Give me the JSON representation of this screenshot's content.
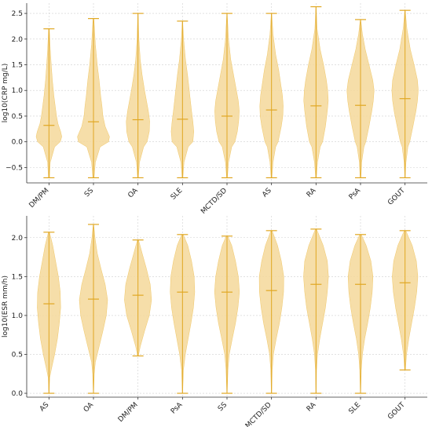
{
  "colors": {
    "violin_fill": "#f5d89a",
    "violin_edge": "#f0c766",
    "line": "#e0a722",
    "grid": "#cfcfcf",
    "axis": "#333333"
  },
  "chart_data": [
    {
      "type": "violin",
      "ylabel": "log10(CRP mg/L)",
      "ylim": [
        -0.8,
        2.7
      ],
      "yticks": [
        -0.5,
        0.0,
        0.5,
        1.0,
        1.5,
        2.0,
        2.5
      ],
      "ytick_labels": [
        "−0.5",
        "0.0",
        "0.5",
        "1.0",
        "1.5",
        "2.0",
        "2.5"
      ],
      "grid": true,
      "categories": [
        "DM/PM",
        "SS",
        "OA",
        "SLE",
        "MCTD/SD",
        "AS",
        "RA",
        "PsA",
        "GOUT"
      ],
      "min": [
        -0.7,
        -0.7,
        -0.7,
        -0.7,
        -0.7,
        -0.7,
        -0.7,
        -0.7,
        -0.7
      ],
      "max": [
        2.2,
        2.4,
        2.5,
        2.35,
        2.5,
        2.5,
        2.63,
        2.38,
        2.56
      ],
      "median": [
        0.32,
        0.39,
        0.43,
        0.44,
        0.5,
        0.62,
        0.7,
        0.71,
        0.84
      ],
      "density": [
        [
          [
            -0.7,
            0.03
          ],
          [
            -0.4,
            0.07
          ],
          [
            -0.1,
            0.3
          ],
          [
            0.0,
            0.6
          ],
          [
            0.1,
            0.68
          ],
          [
            0.2,
            0.62
          ],
          [
            0.35,
            0.48
          ],
          [
            0.5,
            0.4
          ],
          [
            0.7,
            0.33
          ],
          [
            0.9,
            0.26
          ],
          [
            1.2,
            0.18
          ],
          [
            1.5,
            0.12
          ],
          [
            1.8,
            0.07
          ],
          [
            2.2,
            0.02
          ]
        ],
        [
          [
            -0.7,
            0.03
          ],
          [
            -0.4,
            0.1
          ],
          [
            -0.1,
            0.35
          ],
          [
            0.0,
            0.8
          ],
          [
            0.1,
            0.85
          ],
          [
            0.3,
            0.62
          ],
          [
            0.5,
            0.5
          ],
          [
            0.7,
            0.45
          ],
          [
            0.9,
            0.38
          ],
          [
            1.2,
            0.3
          ],
          [
            1.5,
            0.2
          ],
          [
            1.9,
            0.1
          ],
          [
            2.4,
            0.02
          ]
        ],
        [
          [
            -0.7,
            0.02
          ],
          [
            -0.4,
            0.08
          ],
          [
            -0.1,
            0.3
          ],
          [
            0.0,
            0.48
          ],
          [
            0.2,
            0.6
          ],
          [
            0.4,
            0.62
          ],
          [
            0.6,
            0.55
          ],
          [
            0.8,
            0.45
          ],
          [
            1.0,
            0.35
          ],
          [
            1.3,
            0.22
          ],
          [
            1.6,
            0.12
          ],
          [
            2.0,
            0.05
          ],
          [
            2.5,
            0.01
          ]
        ],
        [
          [
            -0.7,
            0.02
          ],
          [
            -0.4,
            0.08
          ],
          [
            -0.1,
            0.3
          ],
          [
            0.0,
            0.55
          ],
          [
            0.2,
            0.6
          ],
          [
            0.4,
            0.55
          ],
          [
            0.6,
            0.48
          ],
          [
            0.8,
            0.42
          ],
          [
            1.0,
            0.36
          ],
          [
            1.3,
            0.27
          ],
          [
            1.6,
            0.16
          ],
          [
            2.0,
            0.06
          ],
          [
            2.35,
            0.01
          ]
        ],
        [
          [
            -0.7,
            0.02
          ],
          [
            -0.4,
            0.08
          ],
          [
            -0.1,
            0.25
          ],
          [
            0.0,
            0.42
          ],
          [
            0.2,
            0.55
          ],
          [
            0.4,
            0.62
          ],
          [
            0.6,
            0.65
          ],
          [
            0.8,
            0.6
          ],
          [
            1.0,
            0.5
          ],
          [
            1.3,
            0.35
          ],
          [
            1.6,
            0.2
          ],
          [
            2.0,
            0.08
          ],
          [
            2.5,
            0.01
          ]
        ],
        [
          [
            -0.7,
            0.02
          ],
          [
            -0.4,
            0.08
          ],
          [
            -0.1,
            0.22
          ],
          [
            0.0,
            0.35
          ],
          [
            0.3,
            0.52
          ],
          [
            0.5,
            0.6
          ],
          [
            0.7,
            0.62
          ],
          [
            0.9,
            0.58
          ],
          [
            1.1,
            0.5
          ],
          [
            1.4,
            0.38
          ],
          [
            1.7,
            0.22
          ],
          [
            2.1,
            0.08
          ],
          [
            2.5,
            0.01
          ]
        ],
        [
          [
            -0.7,
            0.02
          ],
          [
            -0.4,
            0.08
          ],
          [
            -0.1,
            0.22
          ],
          [
            0.0,
            0.35
          ],
          [
            0.3,
            0.5
          ],
          [
            0.6,
            0.6
          ],
          [
            0.8,
            0.65
          ],
          [
            1.0,
            0.62
          ],
          [
            1.2,
            0.55
          ],
          [
            1.5,
            0.4
          ],
          [
            1.8,
            0.22
          ],
          [
            2.2,
            0.06
          ],
          [
            2.63,
            0.01
          ]
        ],
        [
          [
            -0.7,
            0.02
          ],
          [
            -0.4,
            0.06
          ],
          [
            -0.1,
            0.18
          ],
          [
            0.0,
            0.28
          ],
          [
            0.3,
            0.45
          ],
          [
            0.6,
            0.6
          ],
          [
            0.8,
            0.68
          ],
          [
            1.0,
            0.72
          ],
          [
            1.2,
            0.65
          ],
          [
            1.5,
            0.45
          ],
          [
            1.8,
            0.25
          ],
          [
            2.1,
            0.1
          ],
          [
            2.38,
            0.01
          ]
        ],
        [
          [
            -0.7,
            0.01
          ],
          [
            -0.4,
            0.05
          ],
          [
            -0.1,
            0.15
          ],
          [
            0.0,
            0.25
          ],
          [
            0.3,
            0.42
          ],
          [
            0.6,
            0.58
          ],
          [
            0.8,
            0.66
          ],
          [
            1.0,
            0.7
          ],
          [
            1.2,
            0.66
          ],
          [
            1.5,
            0.48
          ],
          [
            1.8,
            0.28
          ],
          [
            2.2,
            0.1
          ],
          [
            2.56,
            0.01
          ]
        ]
      ]
    },
    {
      "type": "violin",
      "ylabel": "log10(ESR mm/h)",
      "ylim": [
        -0.05,
        2.28
      ],
      "yticks": [
        0.0,
        0.5,
        1.0,
        1.5,
        2.0
      ],
      "ytick_labels": [
        "0.0",
        "0.5",
        "1.0",
        "1.5",
        "2.0"
      ],
      "grid": true,
      "categories": [
        "AS",
        "OA",
        "DM/PM",
        "PsA",
        "SS",
        "MCTD/SD",
        "RA",
        "SLE",
        "GOUT"
      ],
      "min": [
        0.0,
        0.0,
        0.48,
        0.0,
        0.0,
        0.0,
        0.0,
        0.0,
        0.3
      ],
      "max": [
        2.07,
        2.17,
        1.97,
        2.04,
        2.02,
        2.09,
        2.11,
        2.04,
        2.09
      ],
      "median": [
        1.15,
        1.21,
        1.26,
        1.3,
        1.3,
        1.32,
        1.4,
        1.4,
        1.42
      ],
      "density": [
        [
          [
            0.0,
            0.01
          ],
          [
            0.2,
            0.04
          ],
          [
            0.3,
            0.12
          ],
          [
            0.5,
            0.3
          ],
          [
            0.7,
            0.45
          ],
          [
            0.9,
            0.55
          ],
          [
            1.1,
            0.62
          ],
          [
            1.3,
            0.6
          ],
          [
            1.5,
            0.5
          ],
          [
            1.7,
            0.35
          ],
          [
            1.9,
            0.2
          ],
          [
            2.07,
            0.03
          ]
        ],
        [
          [
            0.0,
            0.01
          ],
          [
            0.25,
            0.04
          ],
          [
            0.4,
            0.1
          ],
          [
            0.6,
            0.3
          ],
          [
            0.8,
            0.5
          ],
          [
            1.0,
            0.68
          ],
          [
            1.2,
            0.75
          ],
          [
            1.4,
            0.62
          ],
          [
            1.6,
            0.4
          ],
          [
            1.8,
            0.2
          ],
          [
            2.0,
            0.08
          ],
          [
            2.17,
            0.01
          ]
        ],
        [
          [
            0.48,
            0.02
          ],
          [
            0.6,
            0.12
          ],
          [
            0.8,
            0.35
          ],
          [
            1.0,
            0.6
          ],
          [
            1.2,
            0.72
          ],
          [
            1.4,
            0.65
          ],
          [
            1.6,
            0.45
          ],
          [
            1.8,
            0.22
          ],
          [
            1.97,
            0.03
          ]
        ],
        [
          [
            0.0,
            0.01
          ],
          [
            0.3,
            0.05
          ],
          [
            0.5,
            0.15
          ],
          [
            0.7,
            0.3
          ],
          [
            0.9,
            0.45
          ],
          [
            1.1,
            0.58
          ],
          [
            1.3,
            0.65
          ],
          [
            1.5,
            0.62
          ],
          [
            1.7,
            0.48
          ],
          [
            1.9,
            0.28
          ],
          [
            2.04,
            0.04
          ]
        ],
        [
          [
            0.0,
            0.01
          ],
          [
            0.3,
            0.05
          ],
          [
            0.5,
            0.12
          ],
          [
            0.7,
            0.28
          ],
          [
            0.9,
            0.45
          ],
          [
            1.1,
            0.58
          ],
          [
            1.3,
            0.66
          ],
          [
            1.5,
            0.6
          ],
          [
            1.7,
            0.45
          ],
          [
            1.9,
            0.25
          ],
          [
            2.02,
            0.04
          ]
        ],
        [
          [
            0.0,
            0.01
          ],
          [
            0.3,
            0.04
          ],
          [
            0.5,
            0.1
          ],
          [
            0.7,
            0.25
          ],
          [
            0.9,
            0.42
          ],
          [
            1.1,
            0.55
          ],
          [
            1.3,
            0.64
          ],
          [
            1.5,
            0.65
          ],
          [
            1.7,
            0.52
          ],
          [
            1.9,
            0.32
          ],
          [
            2.09,
            0.03
          ]
        ],
        [
          [
            0.0,
            0.01
          ],
          [
            0.3,
            0.03
          ],
          [
            0.5,
            0.08
          ],
          [
            0.7,
            0.2
          ],
          [
            0.9,
            0.35
          ],
          [
            1.1,
            0.5
          ],
          [
            1.3,
            0.6
          ],
          [
            1.5,
            0.66
          ],
          [
            1.7,
            0.6
          ],
          [
            1.9,
            0.38
          ],
          [
            2.11,
            0.03
          ]
        ],
        [
          [
            0.0,
            0.01
          ],
          [
            0.3,
            0.04
          ],
          [
            0.5,
            0.1
          ],
          [
            0.7,
            0.22
          ],
          [
            0.9,
            0.38
          ],
          [
            1.1,
            0.52
          ],
          [
            1.3,
            0.62
          ],
          [
            1.5,
            0.66
          ],
          [
            1.7,
            0.55
          ],
          [
            1.9,
            0.3
          ],
          [
            2.04,
            0.04
          ]
        ],
        [
          [
            0.3,
            0.02
          ],
          [
            0.5,
            0.08
          ],
          [
            0.7,
            0.2
          ],
          [
            0.9,
            0.35
          ],
          [
            1.1,
            0.5
          ],
          [
            1.3,
            0.62
          ],
          [
            1.5,
            0.68
          ],
          [
            1.7,
            0.6
          ],
          [
            1.9,
            0.38
          ],
          [
            2.09,
            0.04
          ]
        ]
      ]
    }
  ]
}
